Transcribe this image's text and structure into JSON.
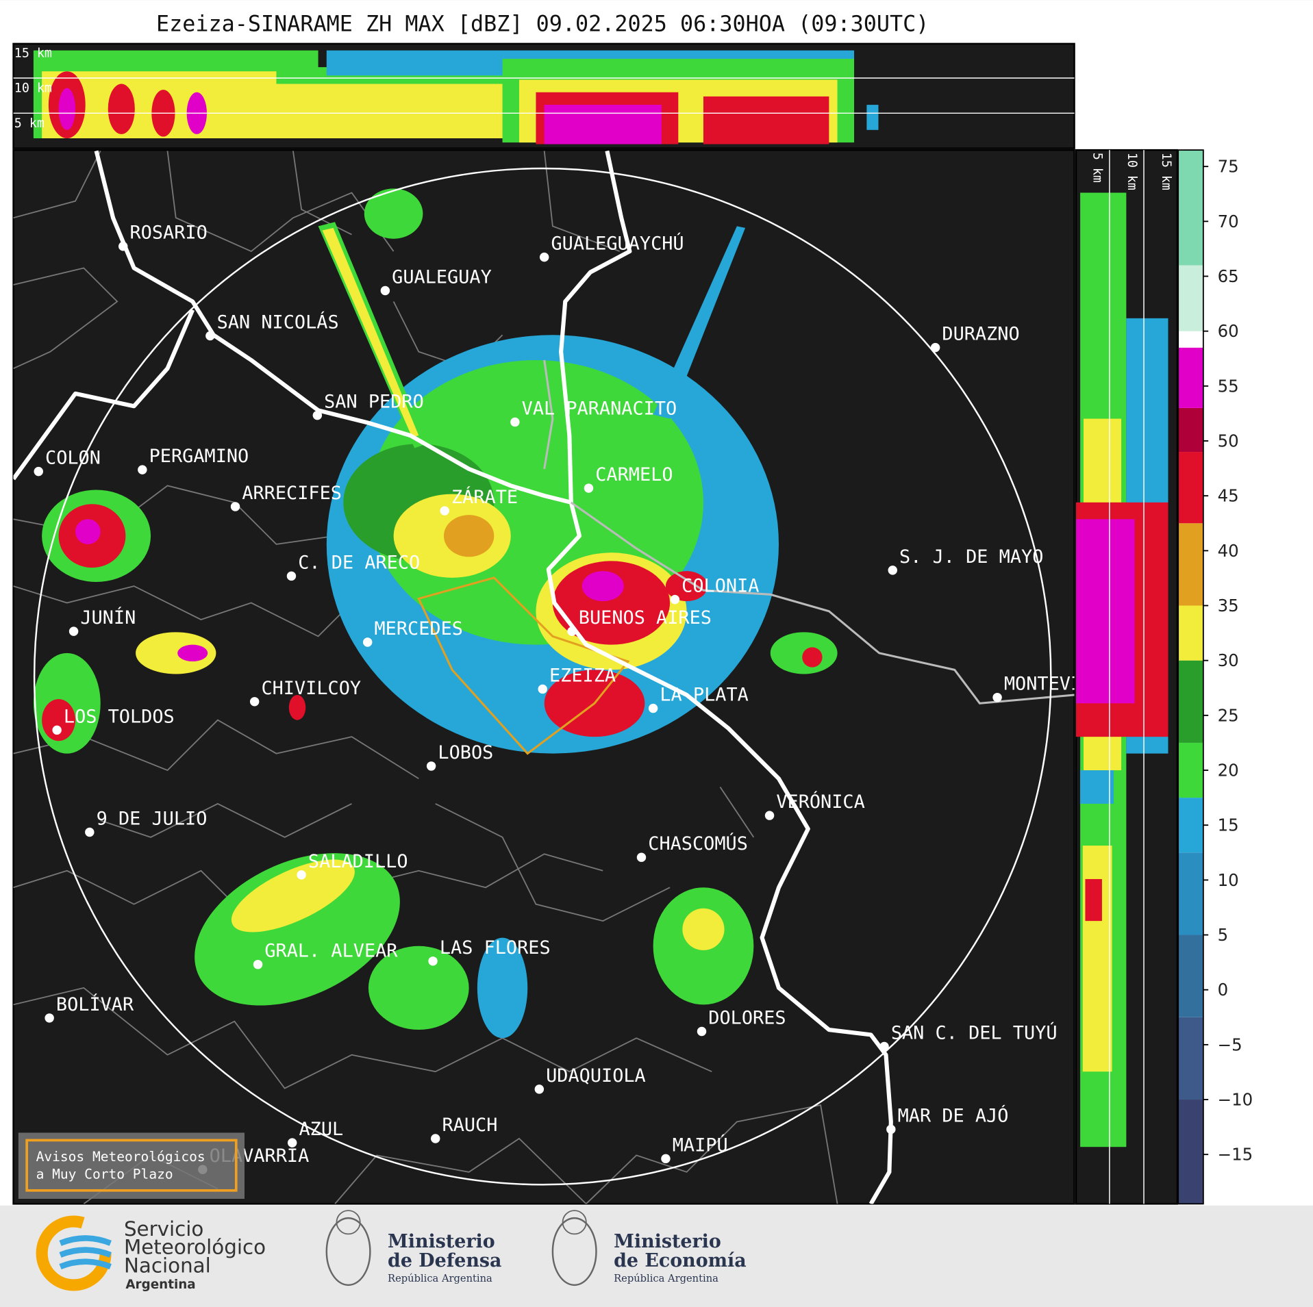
{
  "title": "Ezeiza-SINARAME ZH MAX [dBZ] 09.02.2025 06:30HOA (09:30UTC)",
  "top_panel": {
    "altitude_labels": [
      "15 km",
      "10 km",
      "5 km"
    ]
  },
  "side_panel": {
    "altitude_labels": [
      "5 km",
      "10 km",
      "15 km"
    ]
  },
  "cities": [
    "ROSARIO",
    "GUALEGUAYCHÚ",
    "GUALEGUAY",
    "SAN NICOLÁS",
    "DURAZNO",
    "SAN PEDRO",
    "VAL PARANACITO",
    "COLON",
    "PERGAMINO",
    "CARMELO",
    "ARRECIFES",
    "ZÁRATE",
    "C. DE ARECO",
    "S. J. DE MAYO",
    "COLONIA",
    "JUNÍN",
    "BUENOS AIRES",
    "MERCEDES",
    "EZEIZA",
    "MONTEVIDEO",
    "CHIVILCOY",
    "LA PLATA",
    "LOS TOLDOS",
    "LOBOS",
    "VERÓNICA",
    "9 DE JULIO",
    "CHASCOMÚS",
    "SALADILLO",
    "GRAL. ALVEAR",
    "LAS FLORES",
    "DOLORES",
    "BOLÍVAR",
    "SAN C. DEL TUYÚ",
    "UDAQUIOLA",
    "MAR DE AJÓ",
    "RAUCH",
    "AZUL",
    "MAIPÚ",
    "OLAVARRÍA"
  ],
  "warning_box": [
    "Avisos Meteorológicos",
    "a Muy Corto Plazo"
  ],
  "colorbar": {
    "ylim": [
      -19.5,
      76.5
    ],
    "yticks": [
      75,
      70,
      65,
      60,
      55,
      50,
      45,
      40,
      35,
      30,
      25,
      20,
      15,
      10,
      5,
      0,
      {
        "value": -5,
        "label": "−5"
      },
      {
        "value": -10,
        "label": "−10"
      },
      {
        "value": -15,
        "label": "−15"
      }
    ],
    "bounds": [
      -19.5,
      -10,
      -2.5,
      5,
      12.5,
      17.5,
      22.5,
      30,
      35,
      42.5,
      49,
      53,
      58.5,
      60,
      66,
      76.5
    ],
    "colors": [
      "#3a4370",
      "#3d5a8a",
      "#33709e",
      "#2a8fc0",
      "#27a7d8",
      "#3fd83a",
      "#2a9e2a",
      "#f2ec3a",
      "#e2a020",
      "#e0102a",
      "#b0003a",
      "#e000c8",
      "#ffffff",
      "#c9eedc",
      "#7fd9b0"
    ]
  },
  "footer": {
    "smn": [
      "Servicio",
      "Meteorológico",
      "Nacional",
      "Argentina"
    ],
    "defensa": [
      "Ministerio",
      "de Defensa",
      "República Argentina"
    ],
    "economia": [
      "Ministerio",
      "de Economía",
      "República Argentina"
    ]
  }
}
